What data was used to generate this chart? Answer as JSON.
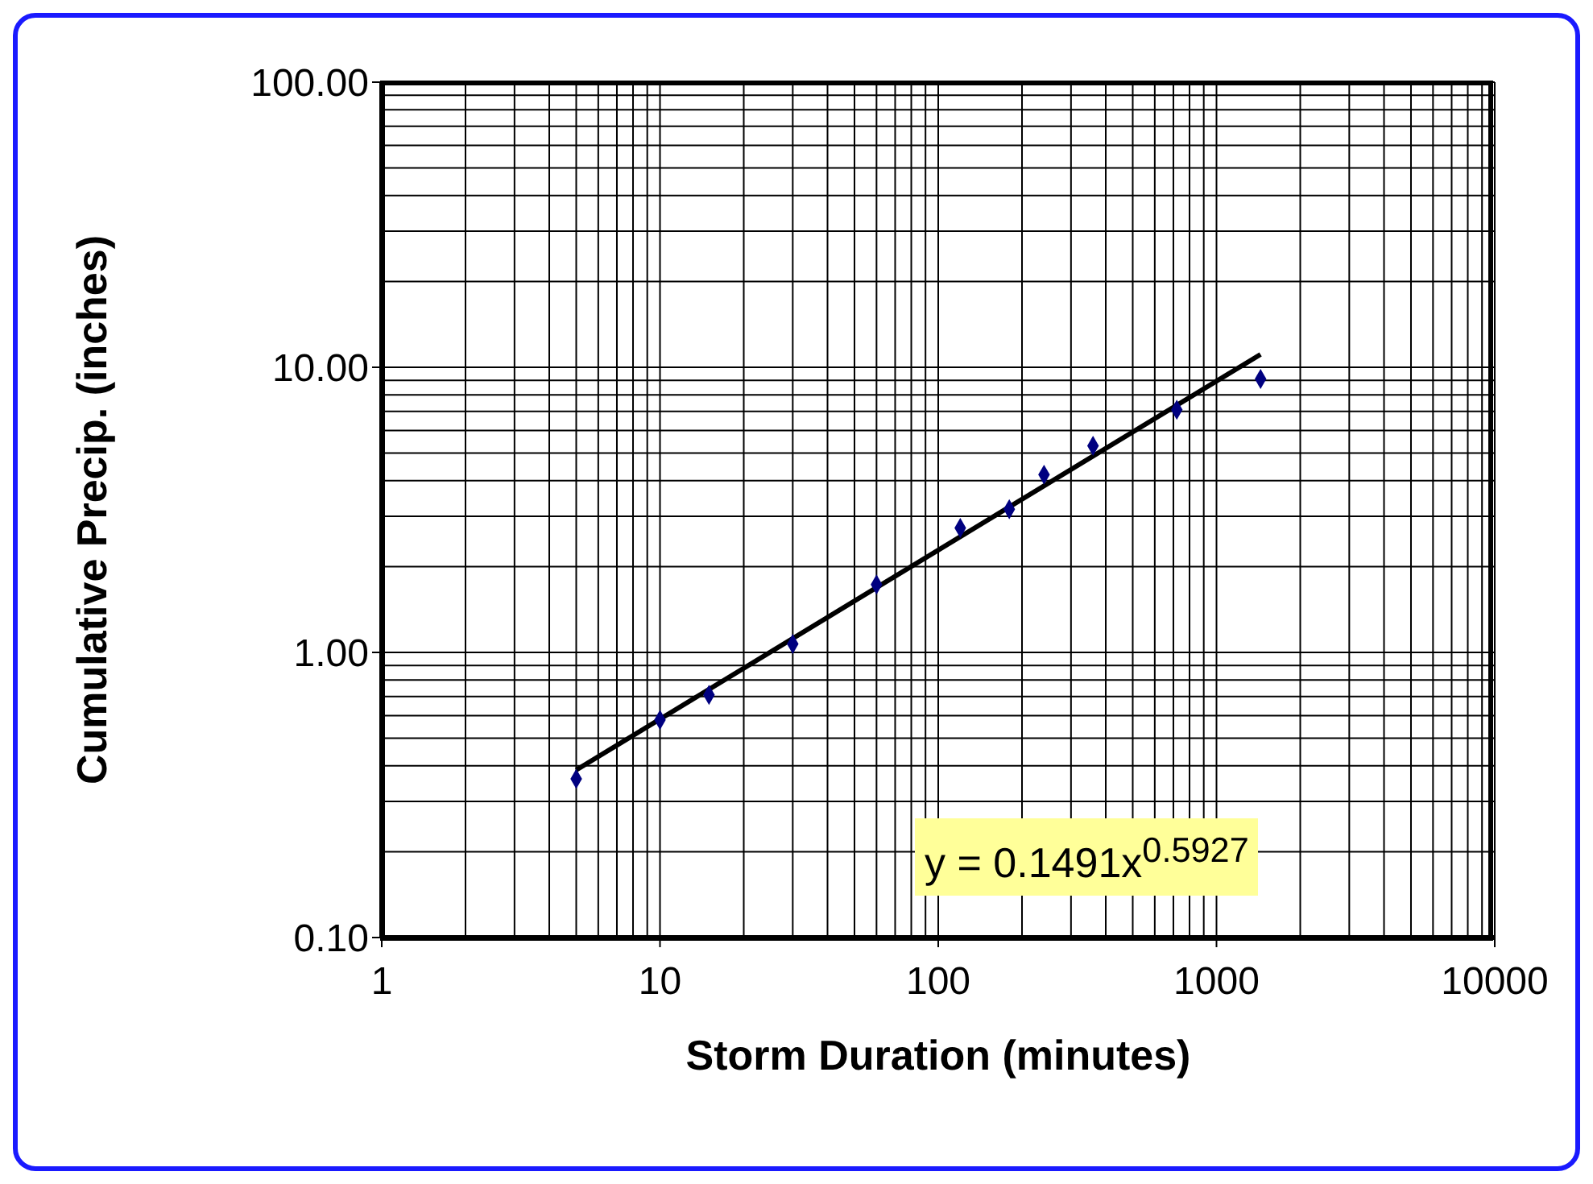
{
  "chart_data": {
    "type": "scatter",
    "xlabel": "Storm Duration (minutes)",
    "ylabel": "Cumulative Precip. (inches)",
    "log": "xy",
    "grid": true,
    "xlim": [
      1,
      10000
    ],
    "xticks": [
      1,
      10,
      100,
      1000,
      10000
    ],
    "ylim": [
      0.1,
      100
    ],
    "yticks": [
      {
        "value": 0.1,
        "label": "0.10"
      },
      {
        "value": 1,
        "label": "1.00"
      },
      {
        "value": 10,
        "label": "10.00"
      },
      {
        "value": 100,
        "label": "100.00"
      }
    ],
    "x": [
      5,
      10,
      15,
      30,
      60,
      120,
      180,
      240,
      360,
      720,
      1440
    ],
    "series": [
      {
        "color": "#000080",
        "marker": "diamond",
        "values": [
          0.36,
          0.58,
          0.71,
          1.07,
          1.73,
          2.73,
          3.18,
          4.2,
          5.3,
          7.1,
          9.1
        ]
      },
      {
        "type": "line",
        "color": "#000000",
        "marker": "none",
        "line_style": "solid",
        "x": [
          5,
          1440
        ],
        "values": [
          0.387,
          11.1
        ]
      }
    ],
    "annotations": [
      "y = 0.1491x$^{0.5927}$"
    ]
  }
}
